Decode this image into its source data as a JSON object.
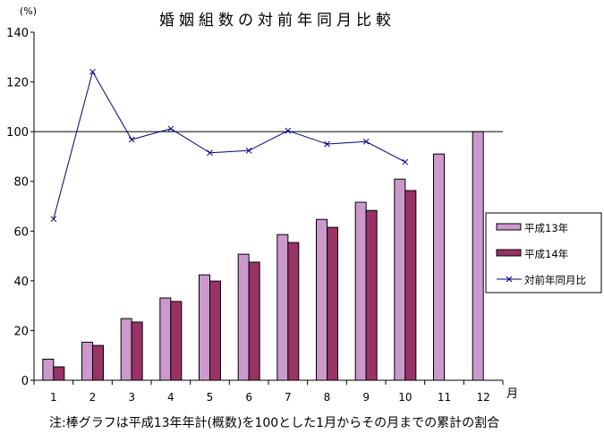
{
  "chart_data": {
    "type": "bar",
    "title": "婚姻組数の対前年同月比較",
    "ylabel": "(%)",
    "xlabel": "月",
    "ylim": [
      0,
      140
    ],
    "yticks": [
      0,
      20,
      40,
      60,
      80,
      100,
      120,
      140
    ],
    "categories": [
      "1",
      "2",
      "3",
      "4",
      "5",
      "6",
      "7",
      "8",
      "9",
      "10",
      "11",
      "12"
    ],
    "reference_line": 100,
    "grid": false,
    "legend_position": "right",
    "series": [
      {
        "name": "平成13年",
        "type": "bar",
        "color": "#CC99CC",
        "values": [
          8.5,
          15.3,
          24.8,
          33.1,
          42.4,
          50.7,
          58.6,
          64.7,
          71.6,
          80.9,
          91.0,
          100
        ]
      },
      {
        "name": "平成14年",
        "type": "bar",
        "color": "#993366",
        "values": [
          5.4,
          14.0,
          23.4,
          31.7,
          39.9,
          47.5,
          55.4,
          61.5,
          68.3,
          76.3,
          null,
          null
        ]
      },
      {
        "name": "対前年同月比",
        "type": "line",
        "color": "#000080",
        "marker": "x",
        "values": [
          64.9,
          124.1,
          96.8,
          101.2,
          91.5,
          92.4,
          100.4,
          95.0,
          96.0,
          87.8,
          null,
          null
        ]
      }
    ],
    "note": "注:棒グラフは平成13年年計(概数)を100とした1月からその月までの累計の割合"
  }
}
